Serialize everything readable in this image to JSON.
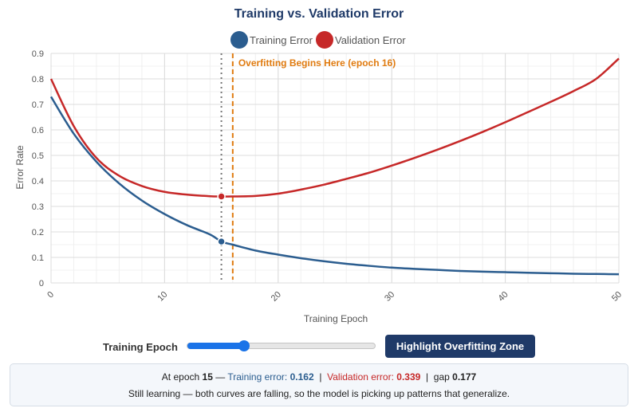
{
  "chart_data": {
    "type": "line",
    "title": "Training vs. Validation Error",
    "xlabel": "Training Epoch",
    "ylabel": "Error Rate",
    "xlim": [
      0,
      50
    ],
    "ylim": [
      0,
      0.9
    ],
    "x_ticks": [
      "0",
      "10",
      "20",
      "30",
      "40",
      "50"
    ],
    "y_ticks": [
      "0",
      "0.1",
      "0.2",
      "0.3",
      "0.4",
      "0.5",
      "0.6",
      "0.7",
      "0.8",
      "0.9"
    ],
    "grid": true,
    "legend_position": "top-center",
    "x": [
      0,
      2,
      4,
      6,
      8,
      10,
      12,
      14,
      15,
      16,
      18,
      20,
      22,
      24,
      26,
      28,
      30,
      32,
      34,
      36,
      38,
      40,
      42,
      44,
      46,
      48,
      50
    ],
    "series": [
      {
        "name": "Training Error",
        "color": "#2b5d8f",
        "values": [
          0.73,
          0.585,
          0.475,
          0.39,
          0.323,
          0.27,
          0.226,
          0.19,
          0.162,
          0.15,
          0.127,
          0.111,
          0.097,
          0.085,
          0.075,
          0.067,
          0.06,
          0.055,
          0.051,
          0.047,
          0.044,
          0.042,
          0.04,
          0.038,
          0.036,
          0.035,
          0.034
        ]
      },
      {
        "name": "Validation Error",
        "color": "#c62828",
        "values": [
          0.8,
          0.615,
          0.49,
          0.42,
          0.38,
          0.357,
          0.346,
          0.34,
          0.339,
          0.339,
          0.341,
          0.35,
          0.366,
          0.385,
          0.408,
          0.432,
          0.46,
          0.49,
          0.522,
          0.556,
          0.592,
          0.63,
          0.67,
          0.71,
          0.752,
          0.8,
          0.88
        ]
      }
    ],
    "current_epoch": 15,
    "markers": [
      {
        "series": "Training Error",
        "x": 15,
        "y": 0.162
      },
      {
        "series": "Validation Error",
        "x": 15,
        "y": 0.339
      }
    ],
    "annotations": [
      {
        "type": "vline",
        "x": 15,
        "style": "dotted",
        "color": "#777777"
      },
      {
        "type": "vline",
        "x": 16,
        "style": "dashed",
        "color": "#e07b10",
        "label": "Overfitting Begins Here (epoch 16)"
      }
    ]
  },
  "controls": {
    "epoch_label": "Training Epoch",
    "epoch_min": 0,
    "epoch_max": 50,
    "epoch_value": 15,
    "highlight_button": "Highlight Overfitting Zone"
  },
  "info": {
    "at_epoch_prefix": "At epoch",
    "epoch": "15",
    "training_label": "Training error:",
    "training_value": "0.162",
    "separator": "|",
    "validation_label": "Validation error:",
    "validation_value": "0.339",
    "gap_label": "gap",
    "gap_value": "0.177",
    "message": "Still learning — both curves are falling, so the model is picking up patterns that generalize."
  },
  "colors": {
    "training": "#2b5d8f",
    "validation": "#c62828",
    "annotation": "#e07b10",
    "button": "#1f3a68",
    "slider": "#1a73e8"
  }
}
